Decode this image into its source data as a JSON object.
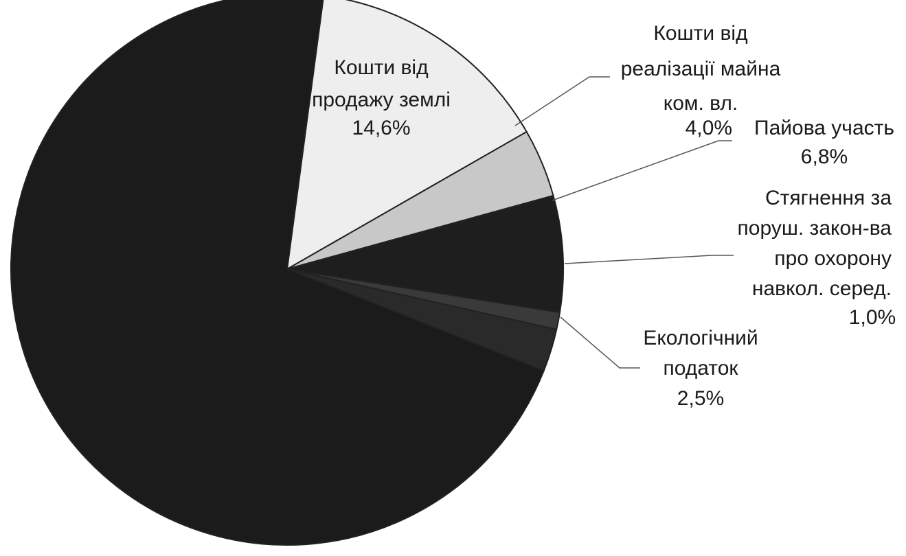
{
  "chart_data": {
    "type": "pie",
    "slices": [
      {
        "value": 14.6,
        "value_label": "14,6%",
        "label_lines": [
          "Кошти від",
          "продажу землі"
        ],
        "color": "#eeeeee",
        "label_position": "inside"
      },
      {
        "value": 4.0,
        "value_label": "4,0%",
        "label_lines": [
          "Кошти від",
          "реалізації майна",
          "ком. вл."
        ],
        "color": "#c8c8c8",
        "label_position": "outside"
      },
      {
        "value": 6.8,
        "value_label": "6,8%",
        "label_lines": [
          "Пайова участь"
        ],
        "color": "#1e1e1e",
        "label_position": "outside"
      },
      {
        "value": 1.0,
        "value_label": "1,0%",
        "label_lines": [
          "Стягнення за",
          "поруш. закон-ва",
          "про охорону",
          "навкол. серед."
        ],
        "color": "#3a3a3a",
        "label_position": "outside"
      },
      {
        "value": 2.5,
        "value_label": "2,5%",
        "label_lines": [
          "Екологічний",
          "податок"
        ],
        "color": "#2a2a2a",
        "label_position": "outside"
      },
      {
        "value": 71.1,
        "value_label": "",
        "label_lines": [],
        "color": "#1b1b1b",
        "label_position": "none"
      }
    ],
    "start_angle_deg": 7.6,
    "direction": "clockwise",
    "legend": "none",
    "title": ""
  }
}
